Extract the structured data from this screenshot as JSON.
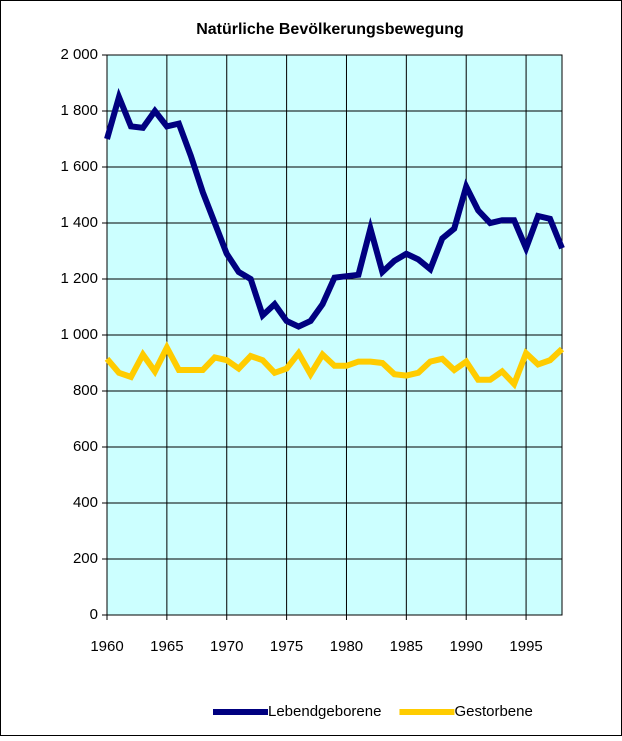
{
  "chart_data": {
    "type": "line",
    "title": "Natürliche Bevölkerungsbewegung",
    "x": [
      1960,
      1961,
      1962,
      1963,
      1964,
      1965,
      1966,
      1967,
      1968,
      1969,
      1970,
      1971,
      1972,
      1973,
      1974,
      1975,
      1976,
      1977,
      1978,
      1979,
      1980,
      1981,
      1982,
      1983,
      1984,
      1985,
      1986,
      1987,
      1988,
      1989,
      1990,
      1991,
      1992,
      1993,
      1994,
      1995,
      1996,
      1997,
      1998
    ],
    "series": [
      {
        "name": "Lebendgeborene",
        "color": "#000080",
        "values": [
          1700,
          1850,
          1745,
          1740,
          1800,
          1745,
          1755,
          1640,
          1510,
          1400,
          1290,
          1225,
          1200,
          1070,
          1110,
          1050,
          1030,
          1050,
          1110,
          1205,
          1210,
          1215,
          1380,
          1225,
          1265,
          1290,
          1270,
          1235,
          1345,
          1380,
          1530,
          1445,
          1400,
          1410,
          1410,
          1310,
          1425,
          1415,
          1310
        ]
      },
      {
        "name": "Gestorbene",
        "color": "#ffcc00",
        "values": [
          915,
          865,
          850,
          930,
          870,
          955,
          875,
          875,
          875,
          920,
          910,
          880,
          925,
          910,
          865,
          880,
          935,
          860,
          930,
          890,
          890,
          905,
          905,
          900,
          860,
          855,
          865,
          905,
          915,
          875,
          905,
          840,
          840,
          870,
          825,
          935,
          895,
          910,
          950
        ]
      }
    ],
    "xlim": [
      1960,
      1998
    ],
    "xticks": [
      1960,
      1965,
      1970,
      1975,
      1980,
      1985,
      1990,
      1995
    ],
    "ylim": [
      0,
      2000
    ],
    "yticks": [
      0,
      200,
      400,
      600,
      800,
      {
        "value": 1000,
        "label": "1 000"
      },
      {
        "value": 1200,
        "label": "1 200"
      },
      {
        "value": 1400,
        "label": "1 400"
      },
      {
        "value": 1600,
        "label": "1 600"
      },
      {
        "value": 1800,
        "label": "1 800"
      },
      {
        "value": 2000,
        "label": "2 000"
      }
    ],
    "grid": true,
    "legend": "bottom",
    "plot_background": "#ccffff"
  }
}
